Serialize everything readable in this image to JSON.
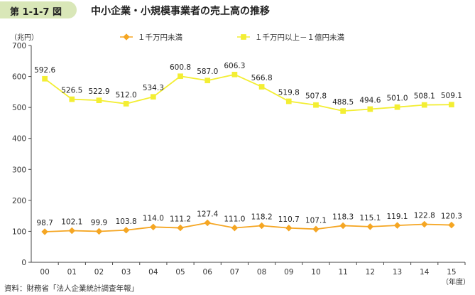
{
  "header": {
    "figure_number": "第 1-1-7 図",
    "title": "中小企業・小規模事業者の売上高の推移"
  },
  "unit": "（兆円）",
  "source": "資料：財務省「法人企業統計調査年報」",
  "colors": {
    "series_under_10m": "#f5a623",
    "series_10m_to_100m": "#f3ee33",
    "badge": "#d9e7b8"
  },
  "chart_data": {
    "type": "line",
    "title": "中小企業・小規模事業者の売上高の推移",
    "xlabel": "（年度）",
    "ylabel": "（兆円）",
    "x": [
      "00",
      "01",
      "02",
      "03",
      "04",
      "05",
      "06",
      "07",
      "08",
      "09",
      "10",
      "11",
      "12",
      "13",
      "14",
      "15"
    ],
    "ylim": [
      0,
      700
    ],
    "yticks": [
      0,
      100,
      200,
      300,
      400,
      500,
      600,
      700
    ],
    "grid": false,
    "legend_position": "top",
    "series": [
      {
        "name": "１千万円未満",
        "marker": "diamond",
        "values": [
          98.7,
          102.1,
          99.9,
          103.8,
          114.0,
          111.2,
          127.4,
          111.0,
          118.2,
          110.7,
          107.1,
          118.3,
          115.1,
          119.1,
          122.8,
          120.3
        ],
        "labels": [
          "98.7",
          "102.1",
          "99.9",
          "103.8",
          "114.0",
          "111.2",
          "127.4",
          "111.0",
          "118.2",
          "110.7",
          "107.1",
          "118.3",
          "115.1",
          "119.1",
          "122.8",
          "120.3"
        ]
      },
      {
        "name": "１千万円以上－１億円未満",
        "marker": "square",
        "values": [
          592.6,
          526.5,
          522.9,
          512.0,
          534.3,
          600.8,
          587.0,
          606.3,
          566.8,
          519.8,
          507.8,
          488.5,
          494.6,
          501.0,
          508.1,
          509.1
        ],
        "labels": [
          "592.6",
          "526.5",
          "522.9",
          "512.0",
          "534.3",
          "600.8",
          "587.0",
          "606.3",
          "566.8",
          "519.8",
          "507.8",
          "488.5",
          "494.6",
          "501.0",
          "508.1",
          "509.1"
        ]
      }
    ]
  }
}
